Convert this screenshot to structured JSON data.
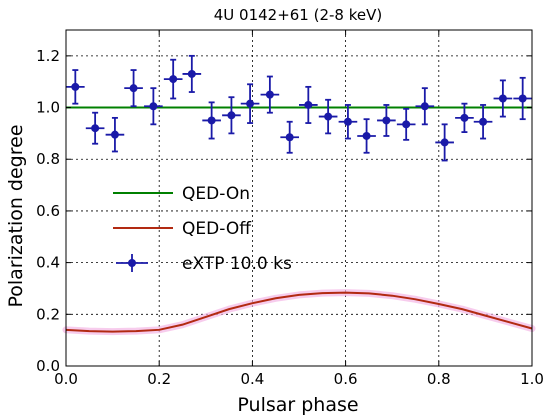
{
  "chart_data": {
    "type": "line",
    "title": "4U 0142+61 (2-8 keV)",
    "xlabel": "Pulsar phase",
    "ylabel": "Polarization degree",
    "xlim": [
      0.0,
      1.0
    ],
    "ylim": [
      0.0,
      1.3
    ],
    "xticks": [
      "0.0",
      "0.2",
      "0.4",
      "0.6",
      "0.8",
      "1.0"
    ],
    "yticks": [
      "0.0",
      "0.2",
      "0.4",
      "0.6",
      "0.8",
      "1.0",
      "1.2"
    ],
    "grid": true,
    "legend_position": "center-left",
    "series": [
      {
        "name": "QED-On",
        "kind": "line",
        "color": "#008000",
        "x": [
          0.0,
          1.0
        ],
        "y": [
          1.0,
          1.0
        ]
      },
      {
        "name": "QED-Off",
        "kind": "line",
        "color": "#b22a12",
        "band_color": "#f4b6e6",
        "x": [
          0.0,
          0.05,
          0.1,
          0.15,
          0.2,
          0.25,
          0.3,
          0.35,
          0.4,
          0.45,
          0.5,
          0.55,
          0.6,
          0.65,
          0.7,
          0.75,
          0.8,
          0.85,
          0.9,
          0.95,
          1.0
        ],
        "y": [
          0.14,
          0.135,
          0.133,
          0.135,
          0.14,
          0.16,
          0.19,
          0.22,
          0.243,
          0.262,
          0.275,
          0.282,
          0.284,
          0.281,
          0.272,
          0.258,
          0.24,
          0.22,
          0.195,
          0.17,
          0.145
        ]
      },
      {
        "name": "eXTP 10.0 ks",
        "kind": "errorbar",
        "color": "#1a1aa8",
        "x": [
          0.02,
          0.0625,
          0.105,
          0.145,
          0.1875,
          0.23,
          0.27,
          0.3125,
          0.355,
          0.395,
          0.4375,
          0.48,
          0.52,
          0.5625,
          0.605,
          0.645,
          0.6875,
          0.73,
          0.77,
          0.8125,
          0.855,
          0.895,
          0.9375,
          0.98
        ],
        "y": [
          1.08,
          0.92,
          0.895,
          1.075,
          1.005,
          1.11,
          1.13,
          0.95,
          0.97,
          1.015,
          1.05,
          0.885,
          1.01,
          0.965,
          0.945,
          0.89,
          0.95,
          0.935,
          1.005,
          0.865,
          0.96,
          0.945,
          1.035,
          1.035
        ],
        "yerr": [
          0.065,
          0.06,
          0.065,
          0.07,
          0.07,
          0.075,
          0.07,
          0.07,
          0.07,
          0.075,
          0.07,
          0.06,
          0.07,
          0.065,
          0.065,
          0.065,
          0.06,
          0.06,
          0.07,
          0.07,
          0.055,
          0.065,
          0.07,
          0.08
        ],
        "xerr": 0.02
      }
    ]
  }
}
